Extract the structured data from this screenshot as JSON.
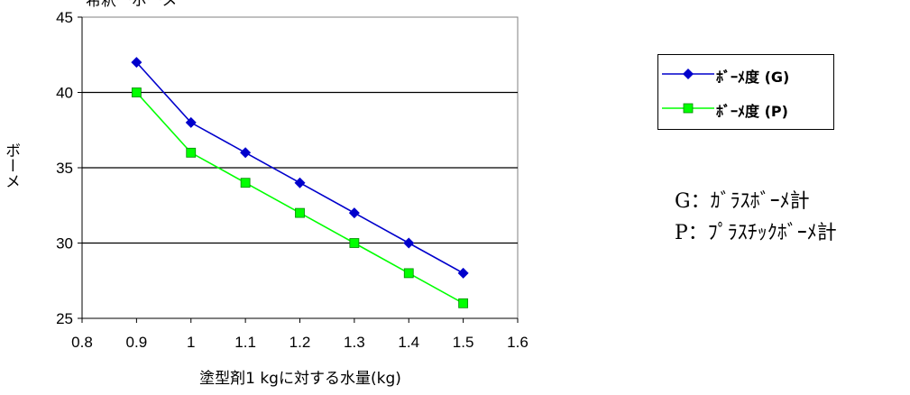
{
  "chart_data": {
    "type": "line",
    "title": "希釈ーボーメ",
    "xlabel": "塗型剤1 kgに対する水量(kg)",
    "ylabel": "ボーメ",
    "xlim": [
      0.8,
      1.6
    ],
    "ylim": [
      25,
      45
    ],
    "xticks": [
      "0.8",
      "0.9",
      "1",
      "1.1",
      "1.2",
      "1.3",
      "1.4",
      "1.5",
      "1.6"
    ],
    "yticks": [
      "25",
      "30",
      "35",
      "40",
      "45"
    ],
    "grid": "horizontal",
    "legend_position": "right",
    "series": [
      {
        "name": "ﾎﾞｰﾒ度 (G)",
        "color": "#0000cc",
        "marker": "diamond",
        "x": [
          0.9,
          1.0,
          1.1,
          1.2,
          1.3,
          1.4,
          1.5
        ],
        "y": [
          42,
          38,
          36,
          34,
          32,
          30,
          28
        ]
      },
      {
        "name": "ﾎﾞｰﾒ度 (P)",
        "color": "#00ff00",
        "marker": "square",
        "x": [
          0.9,
          1.0,
          1.1,
          1.2,
          1.3,
          1.4,
          1.5
        ],
        "y": [
          40,
          36,
          34,
          32,
          30,
          28,
          26
        ]
      }
    ]
  },
  "notes": [
    "G：ｶﾞﾗｽﾎﾞｰﾒ計",
    "P：ﾌﾟﾗｽﾁｯｸﾎﾞｰﾒ計"
  ]
}
